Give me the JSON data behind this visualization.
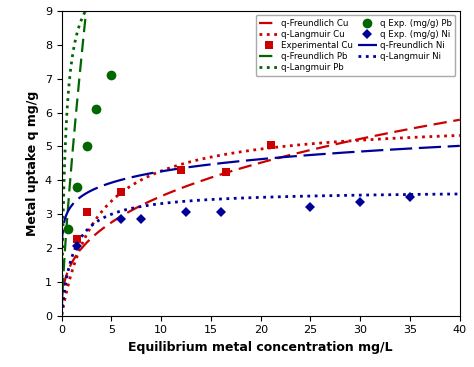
{
  "xlabel": "Equilibrium metal concentration mg/L",
  "ylabel": "Metal uptake q mg/g",
  "xlim": [
    0,
    40
  ],
  "ylim": [
    0,
    9
  ],
  "xticks": [
    0,
    5,
    10,
    15,
    20,
    25,
    30,
    35,
    40
  ],
  "yticks": [
    0,
    1,
    2,
    3,
    4,
    5,
    6,
    7,
    8,
    9
  ],
  "cu_exp_x": [
    1.5,
    2.5,
    6.0,
    12.0,
    16.5,
    21.0
  ],
  "cu_exp_y": [
    2.25,
    3.05,
    3.65,
    4.3,
    4.25,
    5.05
  ],
  "pb_exp_x": [
    0.6,
    1.5,
    2.5,
    3.5,
    5.0
  ],
  "pb_exp_y": [
    2.55,
    3.8,
    5.0,
    6.1,
    7.1
  ],
  "ni_exp_x": [
    1.5,
    6.0,
    8.0,
    12.5,
    16.0,
    25.0,
    30.0,
    35.0
  ],
  "ni_exp_y": [
    2.05,
    2.85,
    2.85,
    3.05,
    3.05,
    3.2,
    3.35,
    3.5
  ],
  "cu_freundlich": {
    "K": 1.55,
    "n": 2.8
  },
  "cu_langmuir": {
    "qmax": 5.8,
    "KL": 0.28
  },
  "pb_freundlich": {
    "K": 4.5,
    "n": 1.3
  },
  "pb_langmuir": {
    "qmax": 10.5,
    "KL": 2.5
  },
  "ni_freundlich": {
    "K": 3.25,
    "n": 8.5
  },
  "ni_langmuir": {
    "qmax": 3.7,
    "KL": 0.85
  },
  "colors": {
    "red": "#cc0000",
    "green": "#006600",
    "blue": "#000099"
  },
  "legend_entries_col1": [
    "q-Freundlich Cu",
    "Experimental Cu",
    "q-Langmuir Pb",
    "q Exp. (mg/g) Ni",
    "q-Langmuir Ni"
  ],
  "legend_entries_col2": [
    "q-Langmuir Cu",
    "q-Freundlich Pb",
    "q Exp. (mg/g) Pb",
    "q-Freundlich Ni"
  ]
}
